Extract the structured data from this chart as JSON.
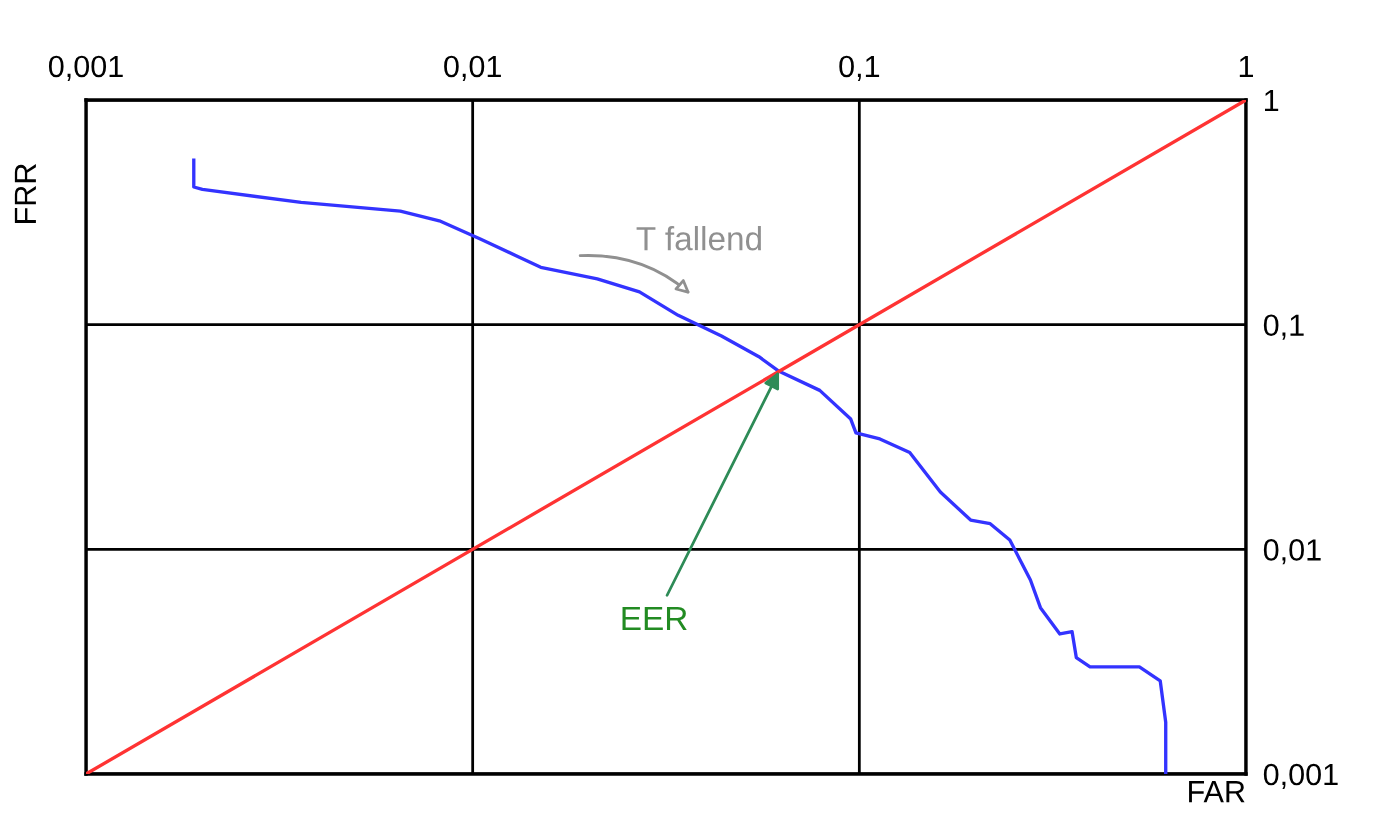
{
  "chart_data": {
    "type": "line",
    "xlabel": "FAR",
    "ylabel": "FRR",
    "log": "xy",
    "grid": true,
    "legend": false,
    "line_style": "solid",
    "marker": "none",
    "xlim": [
      0.001,
      1
    ],
    "xticks": [
      {
        "value": 0.001,
        "label": "0,001"
      },
      {
        "value": 0.01,
        "label": "0,01"
      },
      {
        "value": 0.1,
        "label": "0,1"
      },
      1
    ],
    "ylim": [
      0.001,
      1
    ],
    "yticks": [
      {
        "value": 0.001,
        "label": "0,001"
      },
      {
        "value": 0.01,
        "label": "0,01"
      },
      {
        "value": 0.1,
        "label": "0,1"
      },
      1
    ],
    "series": [
      {
        "color": "#3333ff",
        "x": [
          0.0019,
          0.0019,
          0.002,
          0.0036,
          0.0065,
          0.0082,
          0.0105,
          0.015,
          0.021,
          0.027,
          0.034,
          0.044,
          0.055,
          0.062,
          0.079,
          0.095,
          0.098,
          0.113,
          0.135,
          0.162,
          0.194,
          0.218,
          0.245,
          0.277,
          0.294,
          0.33,
          0.355,
          0.364,
          0.395,
          0.53,
          0.6,
          0.62,
          0.62
        ],
        "values": [
          0.54,
          0.41,
          0.4,
          0.35,
          0.32,
          0.29,
          0.24,
          0.18,
          0.16,
          0.14,
          0.11,
          0.089,
          0.072,
          0.062,
          0.051,
          0.038,
          0.033,
          0.031,
          0.027,
          0.018,
          0.0135,
          0.013,
          0.011,
          0.0073,
          0.0055,
          0.0042,
          0.0043,
          0.0033,
          0.003,
          0.003,
          0.0026,
          0.0017,
          0.001
        ]
      },
      {
        "color": "#ff3333",
        "x": [
          0.001,
          1
        ],
        "values": [
          0.001,
          1
        ]
      }
    ],
    "annotations": [
      "T fallend",
      {
        "text": "EER",
        "x": 0.062,
        "y": 0.062
      }
    ]
  }
}
